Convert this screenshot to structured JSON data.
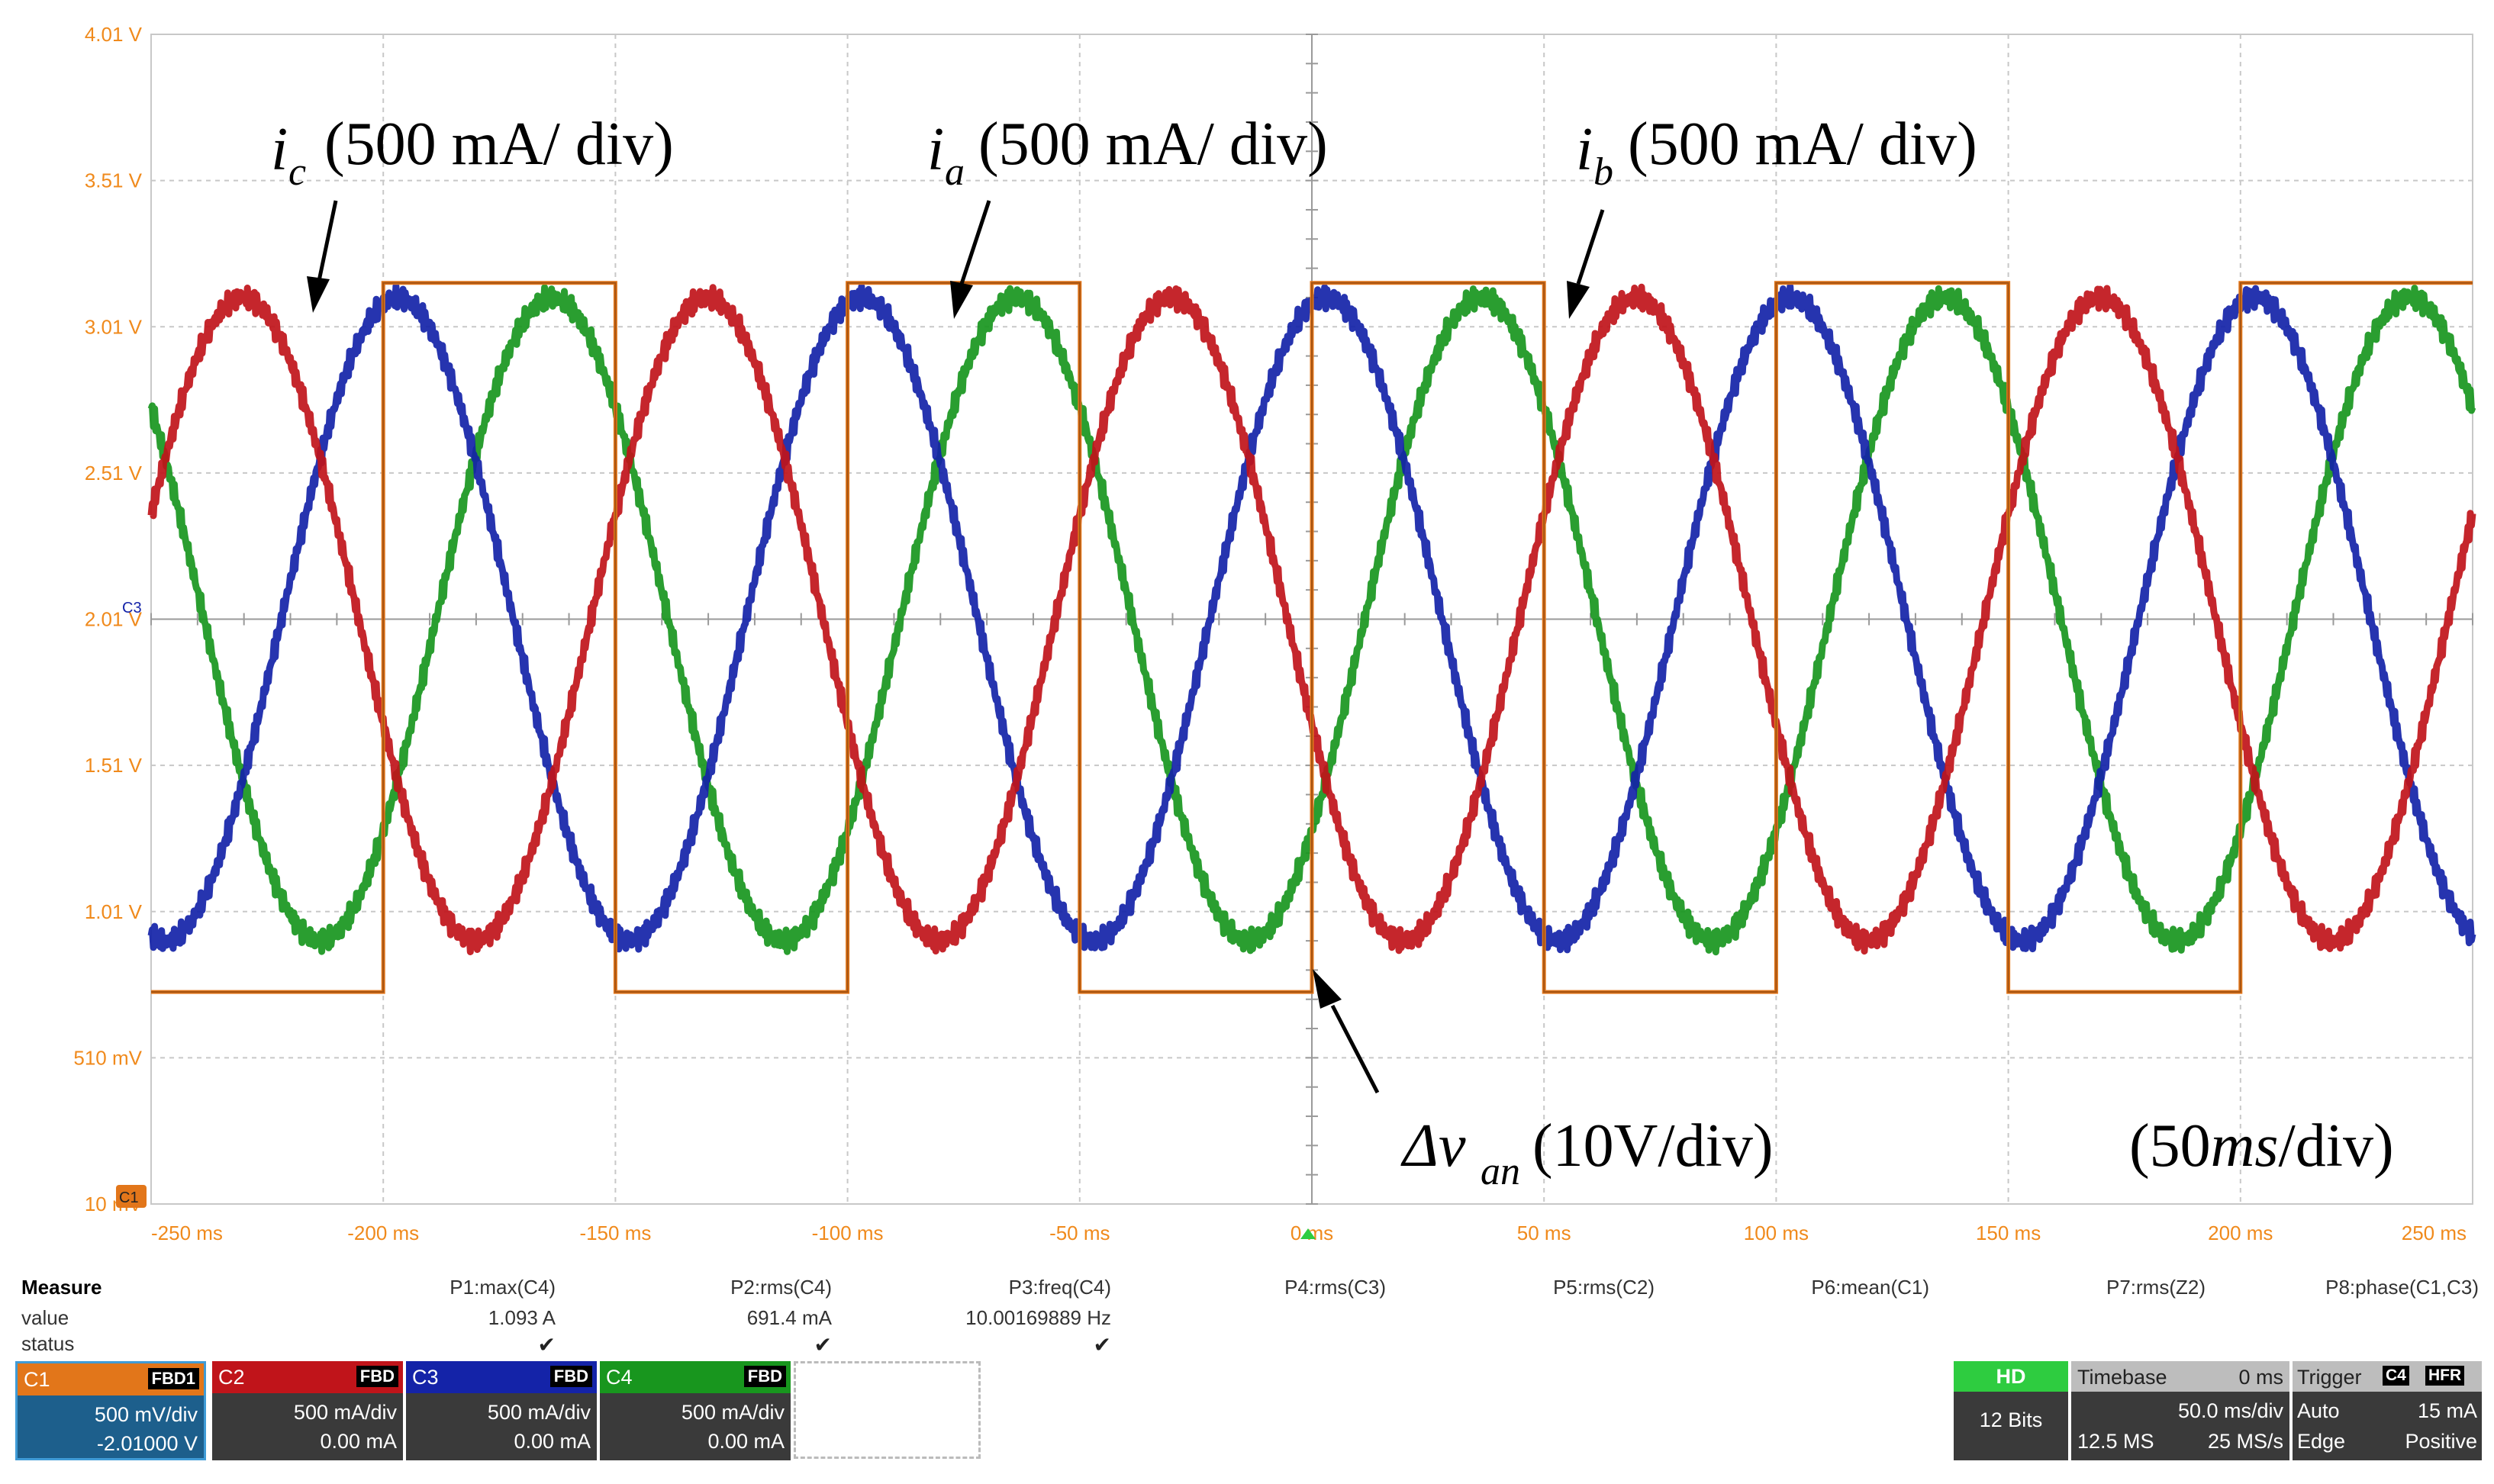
{
  "colors": {
    "c1": "#e2761a",
    "c2": "#c0141a",
    "c3": "#1423a8",
    "c4": "#18961e",
    "axis_label": "#f08a1c",
    "panel": "#3a3a3a",
    "hd": "#2ecc40"
  },
  "chart_data": {
    "type": "line",
    "title": "",
    "xlabel": "",
    "ylabel": "",
    "x_ticks": [
      "-250 ms",
      "-200 ms",
      "-150 ms",
      "-100 ms",
      "-50 ms",
      "0 ms",
      "50 ms",
      "100 ms",
      "150 ms",
      "200 ms",
      "250 ms"
    ],
    "y_ticks": [
      "4.01 V",
      "3.51 V",
      "3.01 V",
      "2.51 V",
      "2.01 V",
      "1.51 V",
      "1.01 V",
      "510 mV",
      "10 mV"
    ],
    "xlim": [
      -250,
      250
    ],
    "ylim": [
      0.01,
      4.01
    ],
    "grid": true,
    "frequency_hz": 10,
    "series": [
      {
        "name": "i_a",
        "channel": "C4",
        "color": "#18961e",
        "type": "sine",
        "amplitude_div": 2.2,
        "offset_div": 4.0,
        "phase_deg": -41
      },
      {
        "name": "i_b",
        "channel": "C3",
        "color": "#1423a8",
        "type": "sine",
        "amplitude_div": 2.2,
        "offset_div": 4.0,
        "phase_deg": 79
      },
      {
        "name": "i_c",
        "channel": "C2",
        "color": "#c0141a",
        "type": "sine",
        "amplitude_div": 2.2,
        "offset_div": 4.0,
        "phase_deg": 199
      },
      {
        "name": "Δv_an",
        "channel": "C1",
        "color": "#e2761a",
        "type": "square",
        "high_div": 6.3,
        "low_div": 1.45,
        "transitions_ms": [
          -250,
          -200,
          -150,
          -100,
          -50,
          0,
          50,
          100,
          150,
          200,
          250
        ]
      }
    ],
    "annotations": [
      {
        "main": "i",
        "sub": "c",
        "text": "(500 mA/ div)"
      },
      {
        "main": "i",
        "sub": "a",
        "text": "(500 mA/ div)"
      },
      {
        "main": "i",
        "sub": "b",
        "text": "(500 mA/ div)"
      },
      {
        "main": "Δv",
        "sub": "an",
        "text": "(10V/div)"
      },
      {
        "prefix": "(50",
        "italic": "ms",
        "suffix": "/div)"
      }
    ]
  },
  "measure": {
    "title": "Measure",
    "row_labels": [
      "value",
      "status"
    ],
    "params": [
      {
        "name": "P1:max(C4)",
        "value": "1.093 A",
        "status": "✔"
      },
      {
        "name": "P2:rms(C4)",
        "value": "691.4 mA",
        "status": "✔"
      },
      {
        "name": "P3:freq(C4)",
        "value": "10.00169889 Hz",
        "status": "✔"
      },
      {
        "name": "P4:rms(C3)",
        "value": "",
        "status": ""
      },
      {
        "name": "P5:rms(C2)",
        "value": "",
        "status": ""
      },
      {
        "name": "P6:mean(C1)",
        "value": "",
        "status": ""
      },
      {
        "name": "P7:rms(Z2)",
        "value": "",
        "status": ""
      },
      {
        "name": "P8:phase(C1,C3)",
        "value": "",
        "status": ""
      }
    ]
  },
  "channels": [
    {
      "name": "C1",
      "flags": "FBD1",
      "scale": "500 mV/div",
      "offset": "-2.01000 V",
      "color": "#e2761a"
    },
    {
      "name": "C2",
      "flags": "FBD",
      "scale": "500 mA/div",
      "offset": "0.00 mA",
      "color": "#c0141a"
    },
    {
      "name": "C3",
      "flags": "FBD",
      "scale": "500 mA/div",
      "offset": "0.00 mA",
      "color": "#1423a8"
    },
    {
      "name": "C4",
      "flags": "FBD",
      "scale": "500 mA/div",
      "offset": "0.00 mA",
      "color": "#18961e"
    }
  ],
  "hd": {
    "label": "HD",
    "bits": "12 Bits"
  },
  "timebase": {
    "label": "Timebase",
    "delay": "0 ms",
    "scale": "50.0 ms/div",
    "samples": "12.5 MS",
    "rate": "25 MS/s"
  },
  "trigger": {
    "label": "Trigger",
    "source": "C4",
    "hfr": "HFR",
    "mode": "Auto",
    "level": "15 mA",
    "type": "Edge",
    "slope": "Positive"
  },
  "marker_labels": {
    "c3": "C3",
    "c1": "C1"
  }
}
